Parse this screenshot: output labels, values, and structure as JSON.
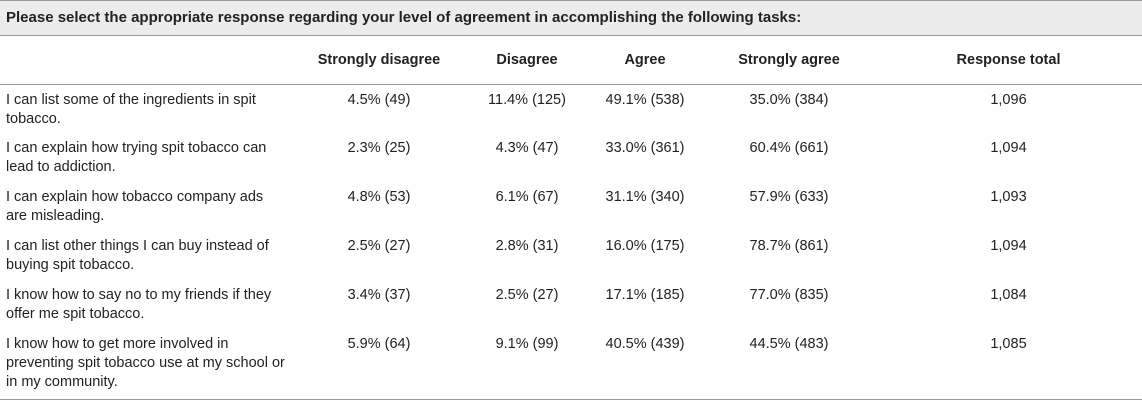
{
  "title": "Please select the appropriate response regarding your level of agreement in accomplishing the following tasks:",
  "columns": [
    "",
    "Strongly disagree",
    "Disagree",
    "Agree",
    "Strongly agree",
    "Response total"
  ],
  "rows": [
    {
      "label": "I can list some of the ingredients in spit tobacco.",
      "strongly_disagree": "4.5% (49)",
      "disagree": "11.4% (125)",
      "agree": "49.1% (538)",
      "strongly_agree": "35.0% (384)",
      "total": "1,096"
    },
    {
      "label": "I can explain how trying spit tobacco can lead to addiction.",
      "strongly_disagree": "2.3% (25)",
      "disagree": "4.3% (47)",
      "agree": "33.0% (361)",
      "strongly_agree": "60.4% (661)",
      "total": "1,094"
    },
    {
      "label": "I can explain how tobacco company ads are misleading.",
      "strongly_disagree": "4.8% (53)",
      "disagree": "6.1% (67)",
      "agree": "31.1% (340)",
      "strongly_agree": "57.9% (633)",
      "total": "1,093"
    },
    {
      "label": "I can list other things I can buy instead of buying spit tobacco.",
      "strongly_disagree": "2.5% (27)",
      "disagree": "2.8% (31)",
      "agree": "16.0% (175)",
      "strongly_agree": "78.7% (861)",
      "total": "1,094"
    },
    {
      "label": "I know how to say no to my friends if they offer me spit tobacco.",
      "strongly_disagree": "3.4% (37)",
      "disagree": "2.5% (27)",
      "agree": "17.1% (185)",
      "strongly_agree": "77.0% (835)",
      "total": "1,084"
    },
    {
      "label": "I know how to get more involved in preventing spit tobacco use at my school or in my community.",
      "strongly_disagree": "5.9% (64)",
      "disagree": "9.1% (99)",
      "agree": "40.5% (439)",
      "strongly_agree": "44.5% (483)",
      "total": "1,085"
    }
  ]
}
